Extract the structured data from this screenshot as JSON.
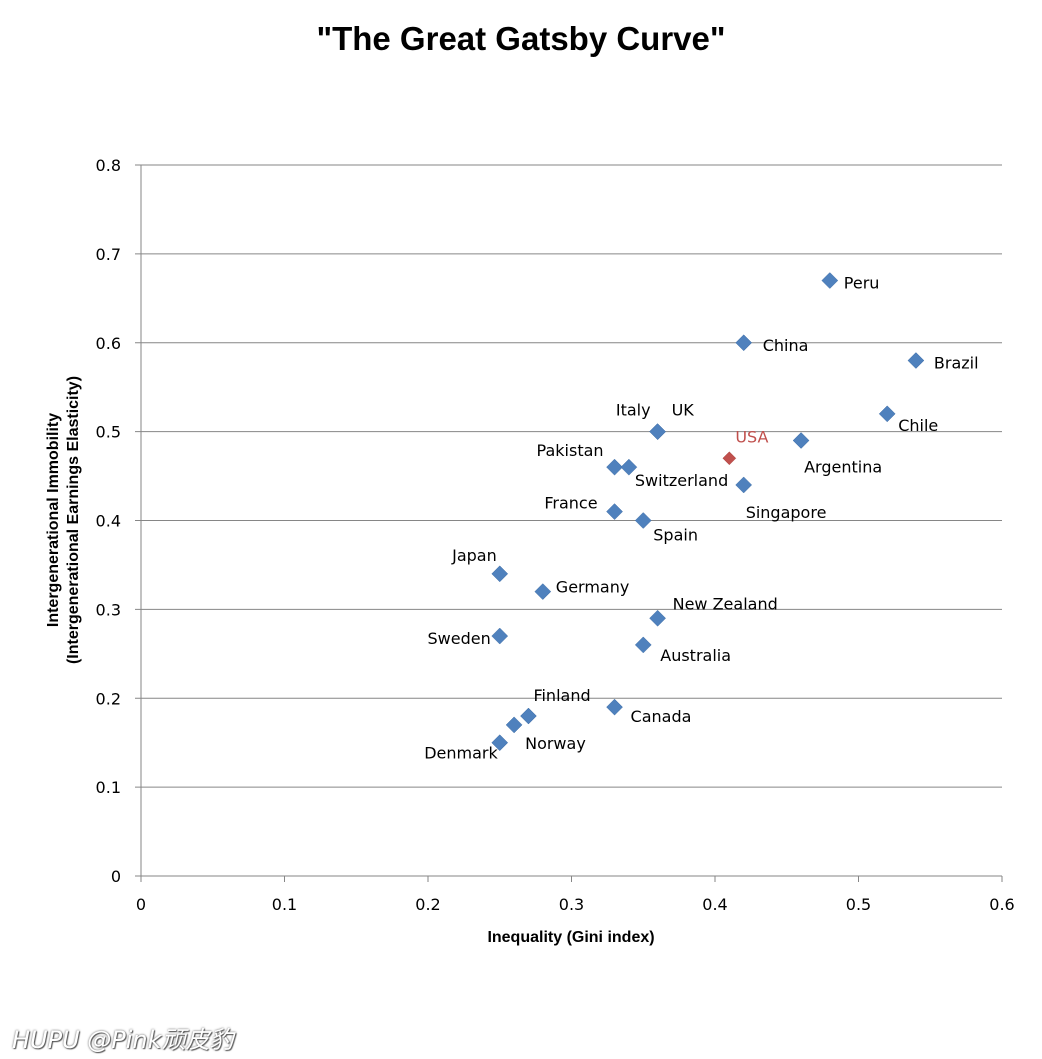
{
  "chart_data": {
    "type": "scatter",
    "title": "\"The Great Gatsby Curve\"",
    "xlabel": "Inequality (Gini index)",
    "ylabel_lines": [
      "Intergenerational Immobility",
      "(Intergenerational Earnings Elasticity)"
    ],
    "xlim": [
      0,
      0.6
    ],
    "ylim": [
      0,
      0.8
    ],
    "xticks": [
      "0",
      "0.1",
      "0.2",
      "0.3",
      "0.4",
      "0.5",
      "0.6"
    ],
    "yticks": [
      "0",
      "0.1",
      "0.2",
      "0.3",
      "0.4",
      "0.5",
      "0.6",
      "0.7",
      "0.8"
    ],
    "grid": "horizontal",
    "colors": {
      "default": "#4F81BD",
      "highlight": "#C0504D"
    },
    "points": [
      {
        "label": "Peru",
        "x": 0.48,
        "y": 0.67
      },
      {
        "label": "China",
        "x": 0.42,
        "y": 0.6
      },
      {
        "label": "Brazil",
        "x": 0.54,
        "y": 0.58
      },
      {
        "label": "Chile",
        "x": 0.52,
        "y": 0.52
      },
      {
        "label": "Argentina",
        "x": 0.46,
        "y": 0.49
      },
      {
        "label": "USA",
        "x": 0.41,
        "y": 0.47,
        "highlight": true
      },
      {
        "label": "Singapore",
        "x": 0.42,
        "y": 0.44
      },
      {
        "label": "UK",
        "x": 0.36,
        "y": 0.5
      },
      {
        "label": "Italy",
        "x": 0.36,
        "y": 0.5
      },
      {
        "label": "Pakistan",
        "x": 0.33,
        "y": 0.46
      },
      {
        "label": "Switzerland",
        "x": 0.34,
        "y": 0.46
      },
      {
        "label": "France",
        "x": 0.33,
        "y": 0.41
      },
      {
        "label": "Spain",
        "x": 0.35,
        "y": 0.4
      },
      {
        "label": "Japan",
        "x": 0.25,
        "y": 0.34
      },
      {
        "label": "Germany",
        "x": 0.28,
        "y": 0.32
      },
      {
        "label": "New Zealand",
        "x": 0.36,
        "y": 0.29
      },
      {
        "label": "Sweden",
        "x": 0.25,
        "y": 0.27
      },
      {
        "label": "Australia",
        "x": 0.35,
        "y": 0.26
      },
      {
        "label": "Finland",
        "x": 0.27,
        "y": 0.18
      },
      {
        "label": "Canada",
        "x": 0.33,
        "y": 0.19
      },
      {
        "label": "Norway",
        "x": 0.26,
        "y": 0.17
      },
      {
        "label": "Denmark",
        "x": 0.25,
        "y": 0.15
      }
    ]
  },
  "watermark": "HUPU @Pink顽皮豹"
}
